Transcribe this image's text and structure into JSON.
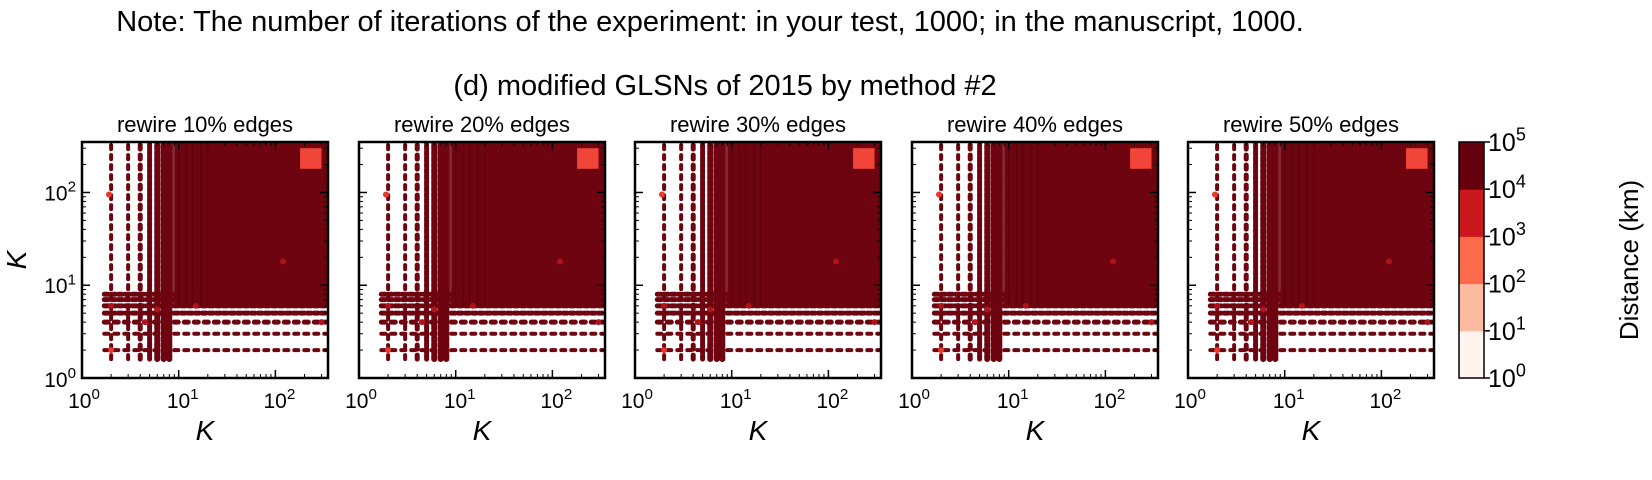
{
  "note": "Note: The number of iterations of the experiment: in your test, 1000; in the manuscript, 1000.",
  "suptitle": "(d) modified GLSNs of 2015 by method #2",
  "colors": {
    "colorbar_bins": [
      "#fff5f0",
      "#fcbba1",
      "#fb6a4a",
      "#cb181d",
      "#67000d"
    ],
    "point_dark": "#6e0410",
    "point_mid": "#b3121b",
    "point_bright": "#e8392c",
    "highlight": "#f2453a"
  },
  "chart_data": [
    {
      "type": "scatter",
      "title": "rewire 10% edges",
      "xlabel": "K",
      "ylabel": "K",
      "xscale": "log",
      "yscale": "log",
      "xlim": [
        1,
        350
      ],
      "ylim": [
        1,
        350
      ],
      "xticks": [
        {
          "base": "10",
          "exp": "0"
        },
        {
          "base": "10",
          "exp": "1"
        },
        {
          "base": "10",
          "exp": "2"
        }
      ],
      "yticks": [
        {
          "base": "10",
          "exp": "0"
        },
        {
          "base": "10",
          "exp": "1"
        },
        {
          "base": "10",
          "exp": "2"
        }
      ]
    },
    {
      "type": "scatter",
      "title": "rewire 20% edges",
      "xlabel": "K",
      "ylabel": "",
      "xscale": "log",
      "yscale": "log",
      "xlim": [
        1,
        350
      ],
      "ylim": [
        1,
        350
      ],
      "xticks": [
        {
          "base": "10",
          "exp": "0"
        },
        {
          "base": "10",
          "exp": "1"
        },
        {
          "base": "10",
          "exp": "2"
        }
      ],
      "yticks": []
    },
    {
      "type": "scatter",
      "title": "rewire 30% edges",
      "xlabel": "K",
      "ylabel": "",
      "xscale": "log",
      "yscale": "log",
      "xlim": [
        1,
        350
      ],
      "ylim": [
        1,
        350
      ],
      "xticks": [
        {
          "base": "10",
          "exp": "0"
        },
        {
          "base": "10",
          "exp": "1"
        },
        {
          "base": "10",
          "exp": "2"
        }
      ],
      "yticks": []
    },
    {
      "type": "scatter",
      "title": "rewire 40% edges",
      "xlabel": "K",
      "ylabel": "",
      "xscale": "log",
      "yscale": "log",
      "xlim": [
        1,
        350
      ],
      "ylim": [
        1,
        350
      ],
      "xticks": [
        {
          "base": "10",
          "exp": "0"
        },
        {
          "base": "10",
          "exp": "1"
        },
        {
          "base": "10",
          "exp": "2"
        }
      ],
      "yticks": []
    },
    {
      "type": "scatter",
      "title": "rewire 50% edges",
      "xlabel": "K",
      "ylabel": "",
      "xscale": "log",
      "yscale": "log",
      "xlim": [
        1,
        350
      ],
      "ylim": [
        1,
        350
      ],
      "xticks": [
        {
          "base": "10",
          "exp": "0"
        },
        {
          "base": "10",
          "exp": "1"
        },
        {
          "base": "10",
          "exp": "2"
        }
      ],
      "yticks": []
    }
  ],
  "colorbar": {
    "label": "Distance (km)",
    "scale": "log",
    "range": [
      1,
      100000
    ],
    "ticks": [
      {
        "base": "10",
        "exp": "0"
      },
      {
        "base": "10",
        "exp": "1"
      },
      {
        "base": "10",
        "exp": "2"
      },
      {
        "base": "10",
        "exp": "3"
      },
      {
        "base": "10",
        "exp": "4"
      },
      {
        "base": "10",
        "exp": "5"
      }
    ]
  }
}
